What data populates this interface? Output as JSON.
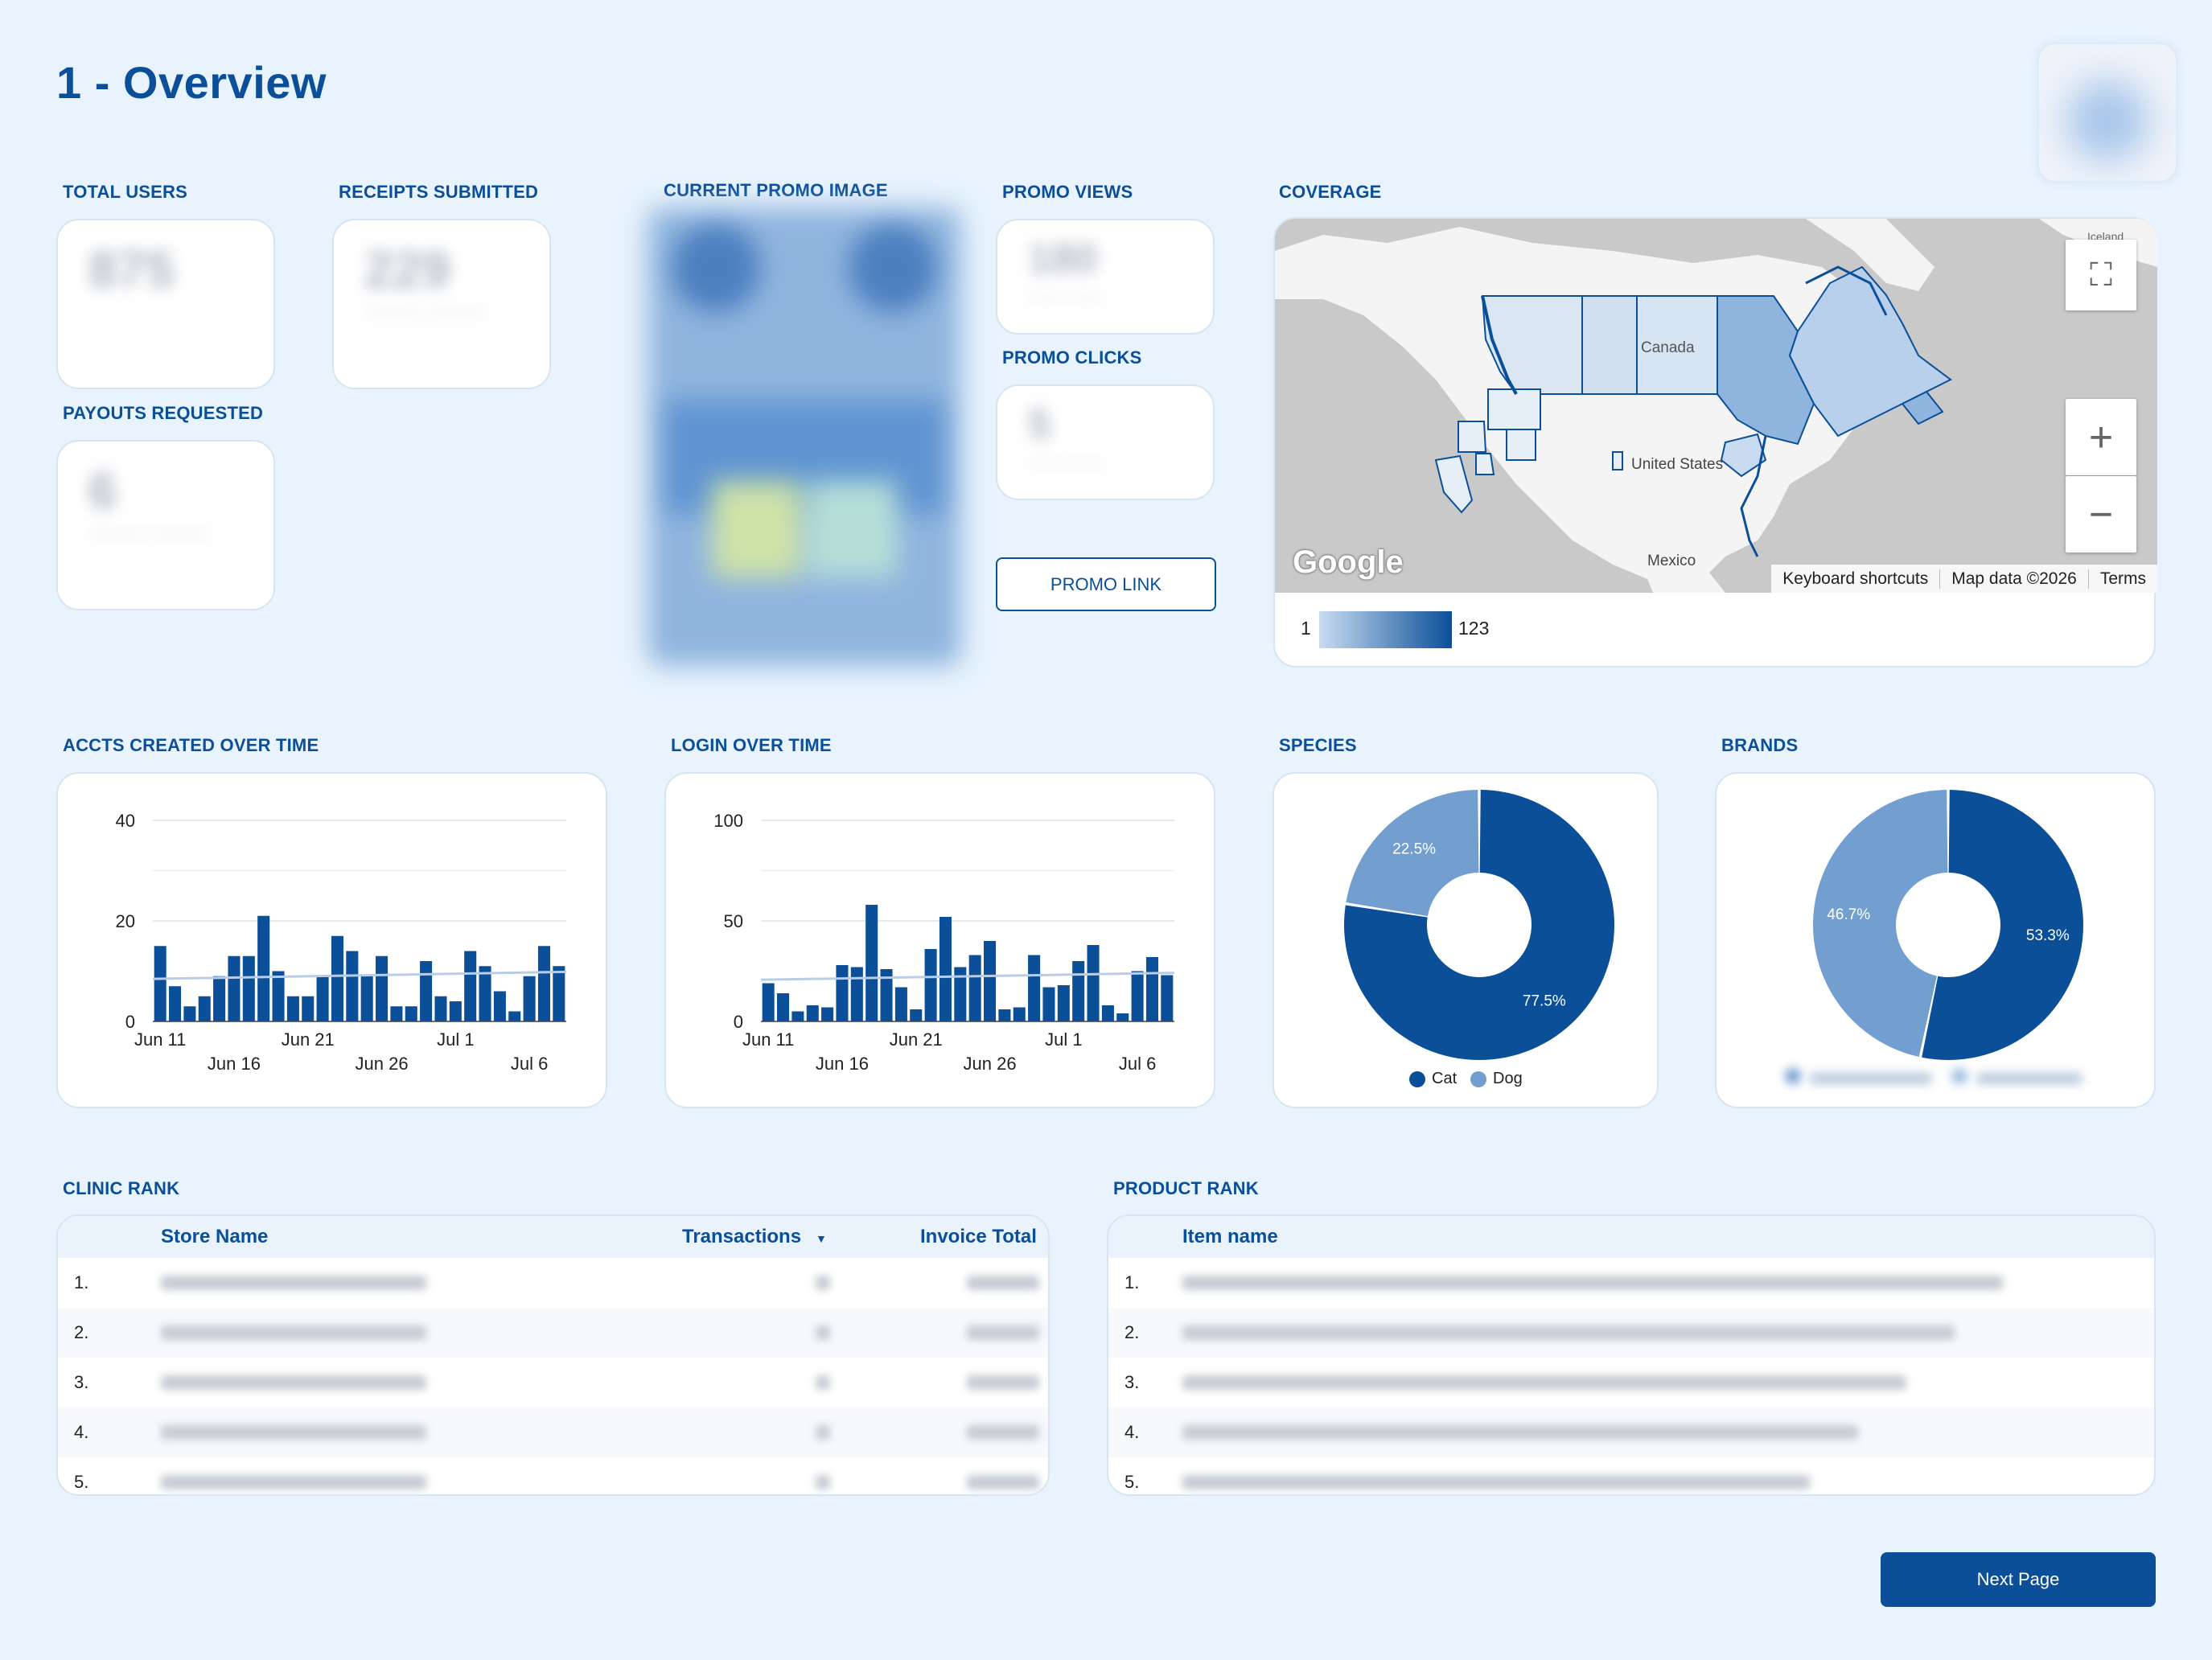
{
  "page": {
    "title": "1 - Overview"
  },
  "kpis": {
    "total_users": {
      "label": "TOTAL USERS",
      "value": "875"
    },
    "receipts_submitted": {
      "label": "RECEIPTS SUBMITTED",
      "value": "229"
    },
    "payouts_requested": {
      "label": "PAYOUTS REQUESTED",
      "value": "6"
    },
    "promo_views": {
      "label": "PROMO VIEWS",
      "value": "180"
    },
    "promo_clicks": {
      "label": "PROMO CLICKS",
      "value": "5"
    }
  },
  "promo": {
    "image_label": "CURRENT PROMO IMAGE",
    "link_label": "PROMO LINK"
  },
  "coverage": {
    "label": "COVERAGE",
    "map_labels": {
      "canada": "Canada",
      "us": "United States",
      "mexico": "Mexico",
      "iceland": "Iceland"
    },
    "attribution": {
      "shortcuts": "Keyboard shortcuts",
      "map_data": "Map data ©2026",
      "terms": "Terms"
    },
    "google_logo": "Google",
    "legend_min": "1",
    "legend_max": "123",
    "fill_color": "#0b4f99"
  },
  "accts_chart_label": "ACCTS CREATED OVER TIME",
  "login_chart_label": "LOGIN OVER TIME",
  "species_label": "SPECIES",
  "brands_label": "BRANDS",
  "chart_data": [
    {
      "type": "bar",
      "title": "ACCTS CREATED OVER TIME",
      "x_ticks_top": [
        "Jun 11",
        "Jun 21",
        "Jul 1"
      ],
      "x_ticks_bottom": [
        "Jun 16",
        "Jun 26",
        "Jul 6"
      ],
      "y_ticks": [
        "0",
        "20",
        "40"
      ],
      "ylim": [
        0,
        40
      ],
      "values": [
        15,
        7,
        3,
        5,
        9,
        13,
        13,
        21,
        10,
        5,
        5,
        9,
        17,
        14,
        9,
        13,
        3,
        3,
        12,
        5,
        4,
        14,
        11,
        6,
        2,
        9,
        15,
        11
      ]
    },
    {
      "type": "bar",
      "title": "LOGIN OVER TIME",
      "x_ticks_top": [
        "Jun 11",
        "Jun 21",
        "Jul 1"
      ],
      "x_ticks_bottom": [
        "Jun 16",
        "Jun 26",
        "Jul 6"
      ],
      "y_ticks": [
        "0",
        "50",
        "100"
      ],
      "ylim": [
        0,
        100
      ],
      "values": [
        19,
        14,
        5,
        8,
        7,
        28,
        27,
        58,
        26,
        17,
        6,
        36,
        52,
        27,
        33,
        40,
        6,
        7,
        33,
        17,
        18,
        30,
        38,
        8,
        4,
        25,
        32,
        23
      ]
    },
    {
      "type": "pie",
      "title": "SPECIES",
      "labels": [
        "Cat",
        "Dog"
      ],
      "values": [
        77.5,
        22.5
      ],
      "value_labels": [
        "77.5%",
        "22.5%"
      ],
      "colors": [
        "#0b4f99",
        "#729fcf"
      ]
    },
    {
      "type": "pie",
      "title": "BRANDS",
      "labels": [
        "",
        ""
      ],
      "values": [
        53.3,
        46.7
      ],
      "value_labels": [
        "53.3%",
        "46.7%"
      ],
      "colors": [
        "#0b4f99",
        "#729fcf"
      ]
    }
  ],
  "clinic_rank": {
    "label": "CLINIC RANK",
    "columns": [
      "Store Name",
      "Transactions",
      "Invoice Total"
    ],
    "ranks": [
      "1.",
      "2.",
      "3.",
      "4.",
      "5."
    ]
  },
  "product_rank": {
    "label": "PRODUCT RANK",
    "columns": [
      "Item name"
    ],
    "ranks": [
      "1.",
      "2.",
      "3.",
      "4.",
      "5."
    ]
  },
  "next_page_label": "Next Page"
}
